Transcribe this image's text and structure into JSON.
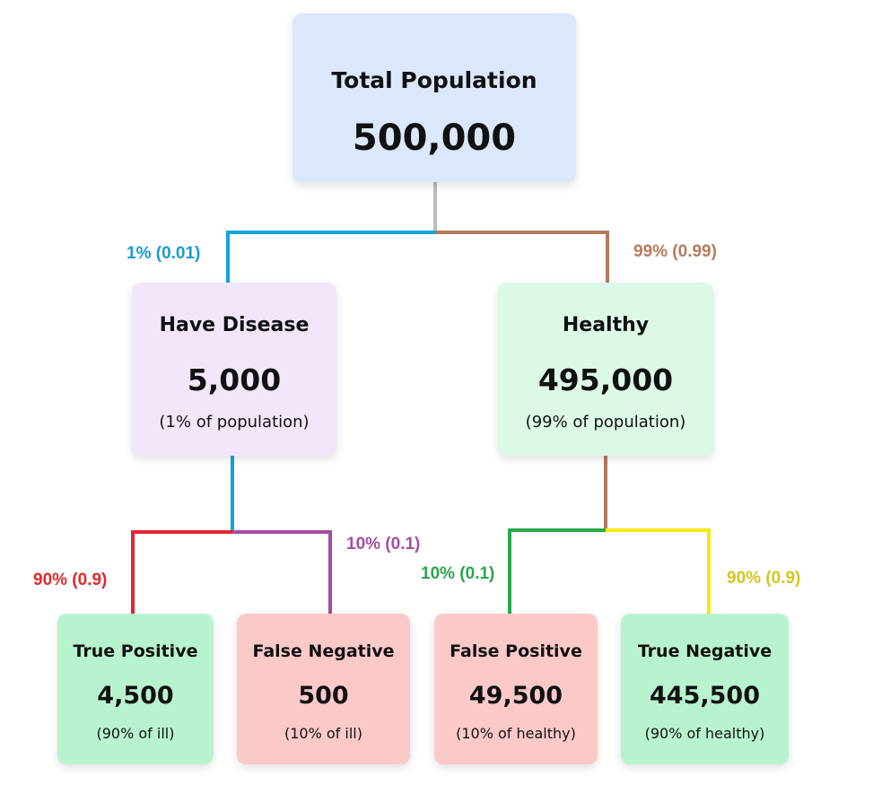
{
  "colors": {
    "root_bg": "#dbe8fc",
    "disease_bg": "#f2e6fb",
    "healthy_bg": "#dcf8e6",
    "positive_result_bg": "#b8f3cf",
    "negative_result_bg": "#fcc9c9",
    "root_connector": "#bbbbbb",
    "disease_branch": "#12a3dd",
    "healthy_branch": "#b5795b",
    "true_positive_branch": "#e2252f",
    "false_negative_branch": "#a04da3",
    "false_positive_branch": "#27ab4a",
    "true_negative_branch": "#f8e914",
    "label_disease": "#1a9ad6",
    "label_healthy": "#b87a5c",
    "label_tp": "#dd2a2e",
    "label_fn": "#a34fa6",
    "label_fp": "#2aa64e",
    "label_tn": "#d2c61f"
  },
  "root": {
    "title": "Total Population",
    "value": "500,000"
  },
  "disease": {
    "title": "Have Disease",
    "value": "5,000",
    "note": "(1% of population)",
    "edge_label": "1% (0.01)"
  },
  "healthy": {
    "title": "Healthy",
    "value": "495,000",
    "note": "(99% of population)",
    "edge_label": "99% (0.99)"
  },
  "true_positive": {
    "title": "True Positive",
    "value": "4,500",
    "note": "(90% of ill)",
    "edge_label": "90% (0.9)"
  },
  "false_negative": {
    "title": "False Negative",
    "value": "500",
    "note": "(10% of ill)",
    "edge_label": "10% (0.1)"
  },
  "false_positive": {
    "title": "False Positive",
    "value": "49,500",
    "note": "(10% of healthy)",
    "edge_label": "10% (0.1)"
  },
  "true_negative": {
    "title": "True Negative",
    "value": "445,500",
    "note": "(90% of healthy)",
    "edge_label": "90% (0.9)"
  }
}
